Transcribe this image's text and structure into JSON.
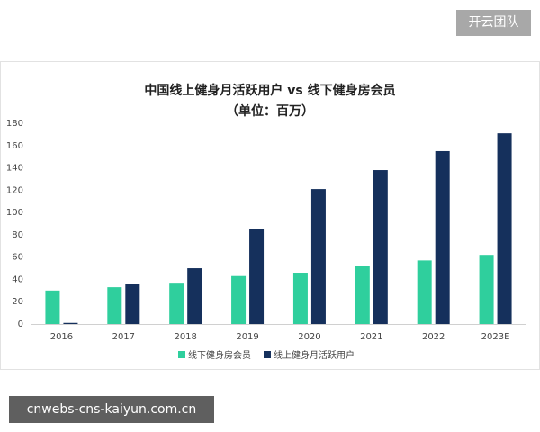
{
  "badge": "开云团队",
  "watermark": "cnwebs-cns-kaiyun.com.cn",
  "chart_data": {
    "type": "bar",
    "title": "中国线上健身月活跃用户 vs 线下健身房会员",
    "subtitle": "（单位：百万）",
    "categories": [
      "2016",
      "2017",
      "2018",
      "2019",
      "2020",
      "2021",
      "2022",
      "2023E"
    ],
    "series": [
      {
        "name": "线下健身房会员",
        "color": "#2fcf9d",
        "values": [
          30,
          33,
          37,
          43,
          46,
          52,
          57,
          62
        ]
      },
      {
        "name": "线上健身月活跃用户",
        "color": "#15305c",
        "values": [
          1,
          36,
          50,
          85,
          121,
          138,
          155,
          171
        ]
      }
    ],
    "ylim": [
      0,
      180
    ],
    "yticks": [
      0,
      20,
      40,
      60,
      80,
      100,
      120,
      140,
      160,
      180
    ],
    "grid": false,
    "legend": "bottom"
  }
}
